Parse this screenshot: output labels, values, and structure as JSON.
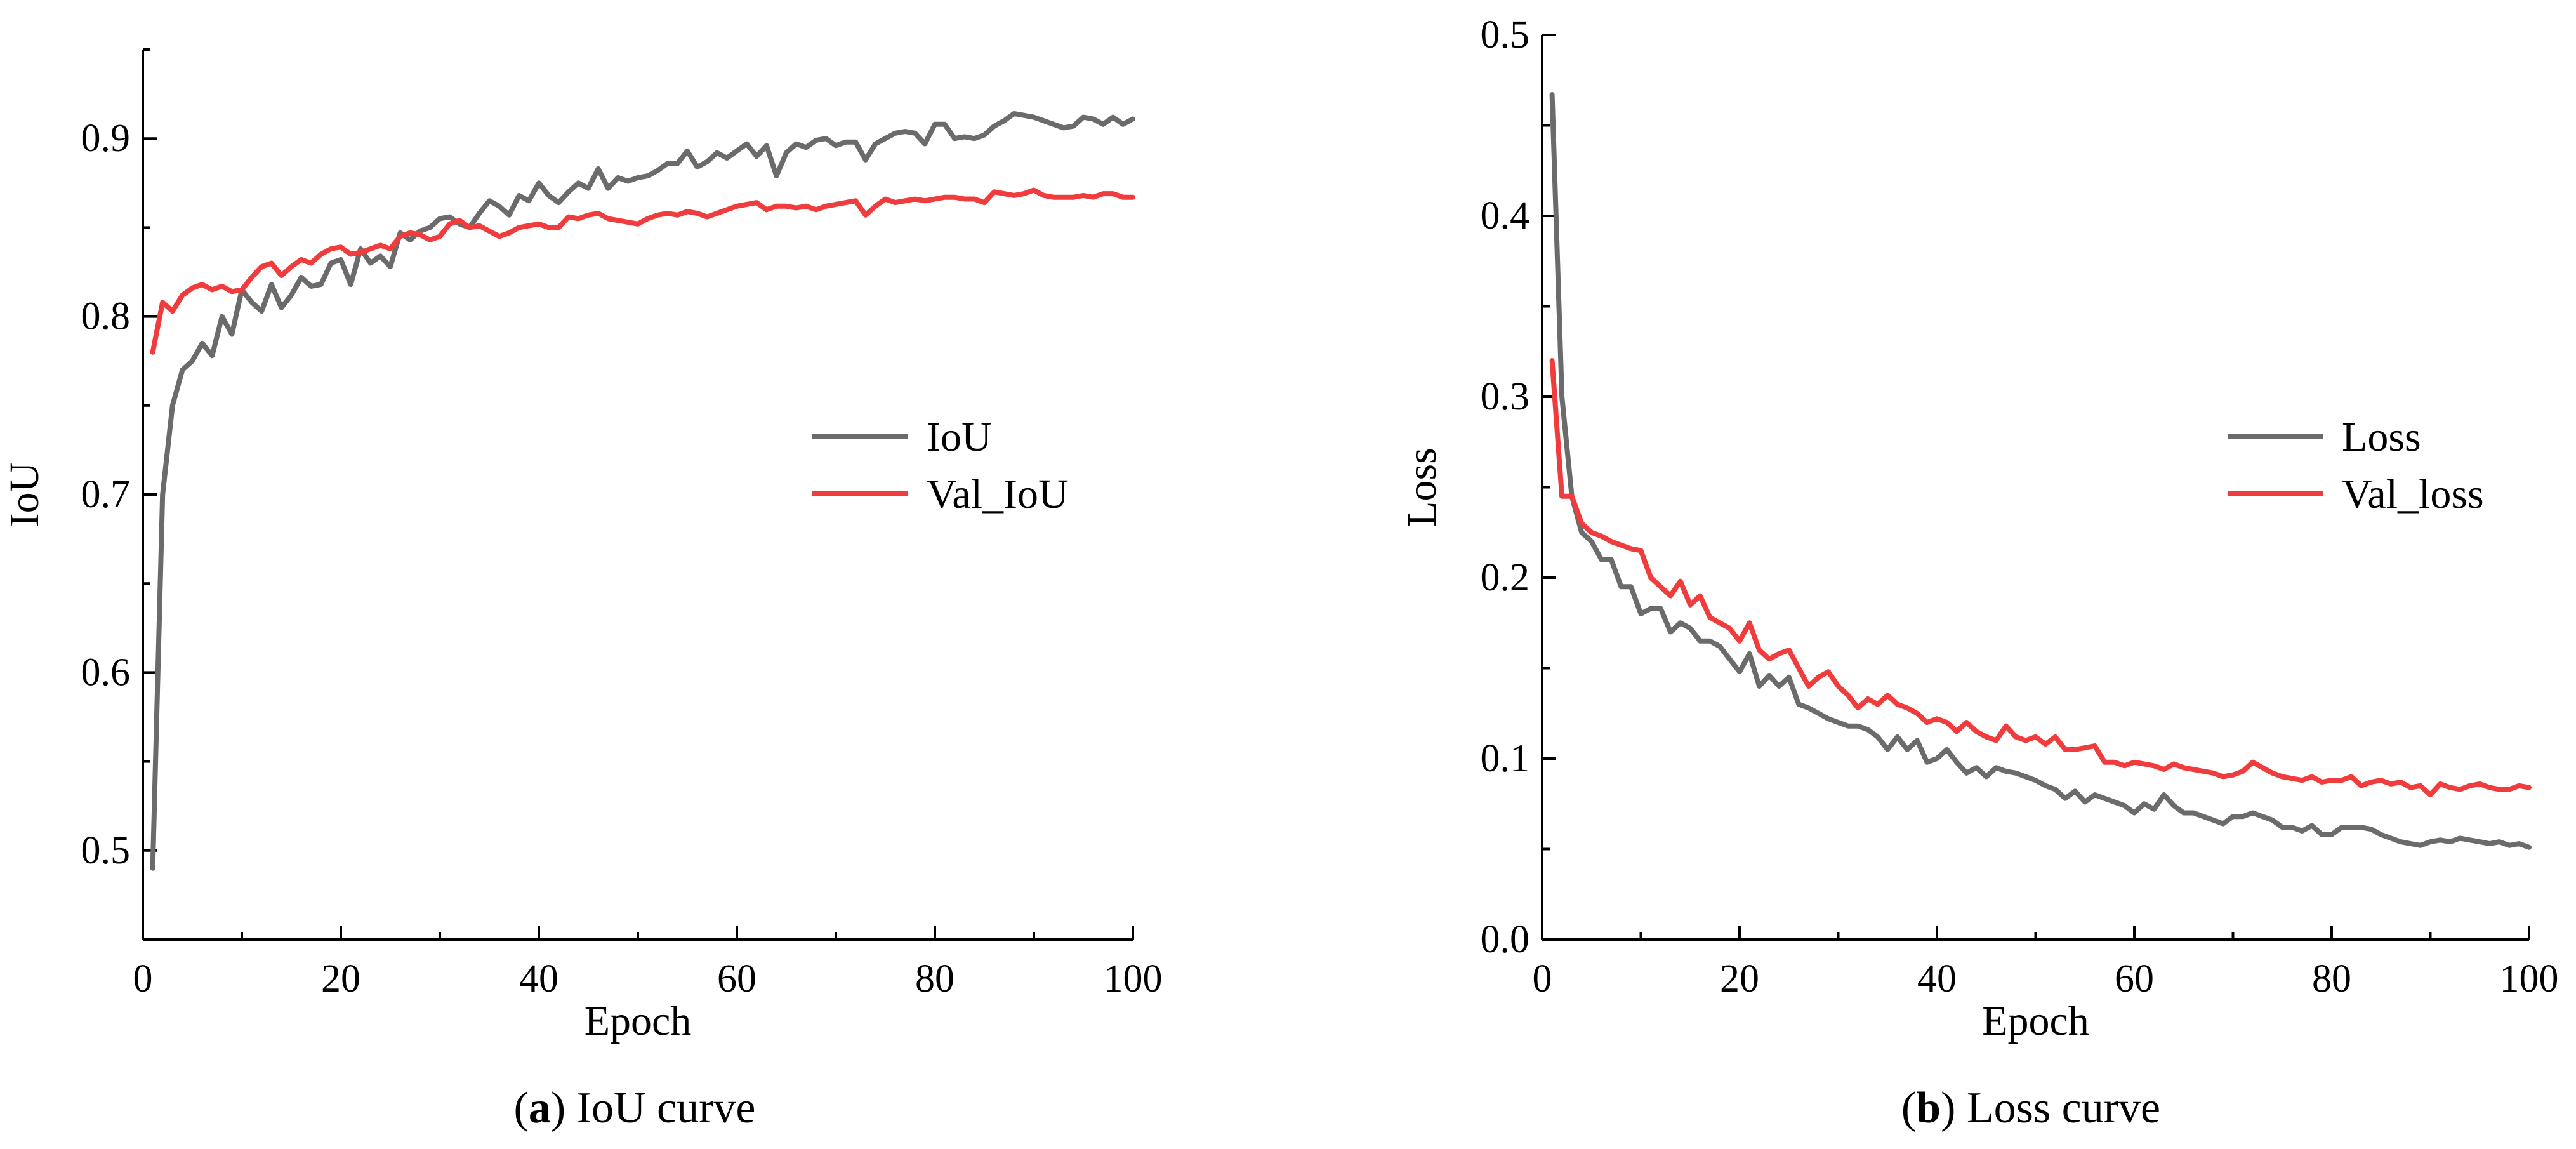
{
  "chart_data": [
    {
      "type": "line",
      "panel_label": "a",
      "caption": "IoU curve",
      "title": "",
      "xlabel": "Epoch",
      "ylabel": "IoU",
      "xlim": [
        0,
        100
      ],
      "ylim": [
        0.45,
        0.95
      ],
      "xticks": [
        0,
        20,
        40,
        60,
        80,
        100
      ],
      "yticks": [
        0.5,
        0.6,
        0.7,
        0.8,
        0.9
      ],
      "ytick_labels": [
        "0.5",
        "0.6",
        "0.7",
        "0.8",
        "0.9"
      ],
      "legend_position": "center-right",
      "series": [
        {
          "name": "IoU",
          "color": "#6b6b6b",
          "x": [
            1,
            2,
            3,
            4,
            5,
            6,
            7,
            8,
            9,
            10,
            11,
            12,
            13,
            14,
            15,
            16,
            17,
            18,
            19,
            20,
            21,
            22,
            23,
            24,
            25,
            26,
            27,
            28,
            29,
            30,
            31,
            32,
            33,
            34,
            35,
            36,
            37,
            38,
            39,
            40,
            41,
            42,
            43,
            44,
            45,
            46,
            47,
            48,
            49,
            50,
            51,
            52,
            53,
            54,
            55,
            56,
            57,
            58,
            59,
            60,
            61,
            62,
            63,
            64,
            65,
            66,
            67,
            68,
            69,
            70,
            71,
            72,
            73,
            74,
            75,
            76,
            77,
            78,
            79,
            80,
            81,
            82,
            83,
            84,
            85,
            86,
            87,
            88,
            89,
            90,
            91,
            92,
            93,
            94,
            95,
            96,
            97,
            98,
            99,
            100
          ],
          "values": [
            0.49,
            0.7,
            0.75,
            0.77,
            0.775,
            0.785,
            0.778,
            0.8,
            0.79,
            0.815,
            0.808,
            0.803,
            0.818,
            0.805,
            0.812,
            0.822,
            0.817,
            0.818,
            0.83,
            0.832,
            0.818,
            0.838,
            0.83,
            0.834,
            0.828,
            0.847,
            0.843,
            0.848,
            0.85,
            0.855,
            0.856,
            0.852,
            0.85,
            0.858,
            0.865,
            0.862,
            0.857,
            0.868,
            0.865,
            0.875,
            0.868,
            0.864,
            0.87,
            0.875,
            0.872,
            0.883,
            0.872,
            0.878,
            0.876,
            0.878,
            0.879,
            0.882,
            0.886,
            0.886,
            0.893,
            0.884,
            0.887,
            0.892,
            0.889,
            0.893,
            0.897,
            0.89,
            0.896,
            0.879,
            0.892,
            0.897,
            0.895,
            0.899,
            0.9,
            0.896,
            0.898,
            0.898,
            0.888,
            0.897,
            0.9,
            0.903,
            0.904,
            0.903,
            0.897,
            0.908,
            0.908,
            0.9,
            0.901,
            0.9,
            0.902,
            0.907,
            0.91,
            0.914,
            0.913,
            0.912,
            0.91,
            0.908,
            0.906,
            0.907,
            0.912,
            0.911,
            0.908,
            0.912,
            0.908,
            0.911
          ]
        },
        {
          "name": "Val_IoU",
          "color": "#f03c3c",
          "x": [
            1,
            2,
            3,
            4,
            5,
            6,
            7,
            8,
            9,
            10,
            11,
            12,
            13,
            14,
            15,
            16,
            17,
            18,
            19,
            20,
            21,
            22,
            23,
            24,
            25,
            26,
            27,
            28,
            29,
            30,
            31,
            32,
            33,
            34,
            35,
            36,
            37,
            38,
            39,
            40,
            41,
            42,
            43,
            44,
            45,
            46,
            47,
            48,
            49,
            50,
            51,
            52,
            53,
            54,
            55,
            56,
            57,
            58,
            59,
            60,
            61,
            62,
            63,
            64,
            65,
            66,
            67,
            68,
            69,
            70,
            71,
            72,
            73,
            74,
            75,
            76,
            77,
            78,
            79,
            80,
            81,
            82,
            83,
            84,
            85,
            86,
            87,
            88,
            89,
            90,
            91,
            92,
            93,
            94,
            95,
            96,
            97,
            98,
            99,
            100
          ],
          "values": [
            0.78,
            0.808,
            0.803,
            0.812,
            0.816,
            0.818,
            0.815,
            0.817,
            0.814,
            0.815,
            0.822,
            0.828,
            0.83,
            0.823,
            0.828,
            0.832,
            0.83,
            0.835,
            0.838,
            0.839,
            0.835,
            0.836,
            0.838,
            0.84,
            0.838,
            0.845,
            0.847,
            0.846,
            0.843,
            0.845,
            0.852,
            0.854,
            0.85,
            0.851,
            0.848,
            0.845,
            0.847,
            0.85,
            0.851,
            0.852,
            0.85,
            0.85,
            0.856,
            0.855,
            0.857,
            0.858,
            0.855,
            0.854,
            0.853,
            0.852,
            0.855,
            0.857,
            0.858,
            0.857,
            0.859,
            0.858,
            0.856,
            0.858,
            0.86,
            0.862,
            0.863,
            0.864,
            0.86,
            0.862,
            0.862,
            0.861,
            0.862,
            0.86,
            0.862,
            0.863,
            0.864,
            0.865,
            0.857,
            0.862,
            0.866,
            0.864,
            0.865,
            0.866,
            0.865,
            0.866,
            0.867,
            0.867,
            0.866,
            0.866,
            0.864,
            0.87,
            0.869,
            0.868,
            0.869,
            0.871,
            0.868,
            0.867,
            0.867,
            0.867,
            0.868,
            0.867,
            0.869,
            0.869,
            0.867,
            0.867
          ]
        }
      ]
    },
    {
      "type": "line",
      "panel_label": "b",
      "caption": "Loss curve",
      "title": "",
      "xlabel": "Epoch",
      "ylabel": "Loss",
      "xlim": [
        0,
        100
      ],
      "ylim": [
        0,
        0.5
      ],
      "xticks": [
        0,
        20,
        40,
        60,
        80,
        100
      ],
      "yticks": [
        0,
        0.1,
        0.2,
        0.3,
        0.4,
        0.5
      ],
      "ytick_labels": [
        "0.0",
        "0.1",
        "0.2",
        "0.3",
        "0.4",
        "0.5"
      ],
      "legend_position": "center-right",
      "series": [
        {
          "name": "Loss",
          "color": "#6b6b6b",
          "x": [
            1,
            2,
            3,
            4,
            5,
            6,
            7,
            8,
            9,
            10,
            11,
            12,
            13,
            14,
            15,
            16,
            17,
            18,
            19,
            20,
            21,
            22,
            23,
            24,
            25,
            26,
            27,
            28,
            29,
            30,
            31,
            32,
            33,
            34,
            35,
            36,
            37,
            38,
            39,
            40,
            41,
            42,
            43,
            44,
            45,
            46,
            47,
            48,
            49,
            50,
            51,
            52,
            53,
            54,
            55,
            56,
            57,
            58,
            59,
            60,
            61,
            62,
            63,
            64,
            65,
            66,
            67,
            68,
            69,
            70,
            71,
            72,
            73,
            74,
            75,
            76,
            77,
            78,
            79,
            80,
            81,
            82,
            83,
            84,
            85,
            86,
            87,
            88,
            89,
            90,
            91,
            92,
            93,
            94,
            95,
            96,
            97,
            98,
            99,
            100
          ],
          "values": [
            0.467,
            0.3,
            0.245,
            0.225,
            0.22,
            0.21,
            0.21,
            0.195,
            0.195,
            0.18,
            0.183,
            0.183,
            0.17,
            0.175,
            0.172,
            0.165,
            0.165,
            0.162,
            0.155,
            0.148,
            0.158,
            0.14,
            0.146,
            0.14,
            0.145,
            0.13,
            0.128,
            0.125,
            0.122,
            0.12,
            0.118,
            0.118,
            0.116,
            0.112,
            0.105,
            0.112,
            0.105,
            0.11,
            0.098,
            0.1,
            0.105,
            0.098,
            0.092,
            0.095,
            0.09,
            0.095,
            0.093,
            0.092,
            0.09,
            0.088,
            0.085,
            0.083,
            0.078,
            0.082,
            0.076,
            0.08,
            0.078,
            0.076,
            0.074,
            0.07,
            0.075,
            0.072,
            0.08,
            0.074,
            0.07,
            0.07,
            0.068,
            0.066,
            0.064,
            0.068,
            0.068,
            0.07,
            0.068,
            0.066,
            0.062,
            0.062,
            0.06,
            0.063,
            0.058,
            0.058,
            0.062,
            0.062,
            0.062,
            0.061,
            0.058,
            0.056,
            0.054,
            0.053,
            0.052,
            0.054,
            0.055,
            0.054,
            0.056,
            0.055,
            0.054,
            0.053,
            0.054,
            0.052,
            0.053,
            0.051
          ]
        },
        {
          "name": "Val_loss",
          "color": "#f03c3c",
          "x": [
            1,
            2,
            3,
            4,
            5,
            6,
            7,
            8,
            9,
            10,
            11,
            12,
            13,
            14,
            15,
            16,
            17,
            18,
            19,
            20,
            21,
            22,
            23,
            24,
            25,
            26,
            27,
            28,
            29,
            30,
            31,
            32,
            33,
            34,
            35,
            36,
            37,
            38,
            39,
            40,
            41,
            42,
            43,
            44,
            45,
            46,
            47,
            48,
            49,
            50,
            51,
            52,
            53,
            54,
            55,
            56,
            57,
            58,
            59,
            60,
            61,
            62,
            63,
            64,
            65,
            66,
            67,
            68,
            69,
            70,
            71,
            72,
            73,
            74,
            75,
            76,
            77,
            78,
            79,
            80,
            81,
            82,
            83,
            84,
            85,
            86,
            87,
            88,
            89,
            90,
            91,
            92,
            93,
            94,
            95,
            96,
            97,
            98,
            99,
            100
          ],
          "values": [
            0.32,
            0.245,
            0.245,
            0.23,
            0.225,
            0.223,
            0.22,
            0.218,
            0.216,
            0.215,
            0.2,
            0.195,
            0.19,
            0.198,
            0.185,
            0.19,
            0.178,
            0.175,
            0.172,
            0.165,
            0.175,
            0.16,
            0.155,
            0.158,
            0.16,
            0.15,
            0.14,
            0.145,
            0.148,
            0.14,
            0.135,
            0.128,
            0.133,
            0.13,
            0.135,
            0.13,
            0.128,
            0.125,
            0.12,
            0.122,
            0.12,
            0.115,
            0.12,
            0.115,
            0.112,
            0.11,
            0.118,
            0.112,
            0.11,
            0.112,
            0.108,
            0.112,
            0.105,
            0.105,
            0.106,
            0.107,
            0.098,
            0.098,
            0.096,
            0.098,
            0.097,
            0.096,
            0.094,
            0.097,
            0.095,
            0.094,
            0.093,
            0.092,
            0.09,
            0.091,
            0.093,
            0.098,
            0.095,
            0.092,
            0.09,
            0.089,
            0.088,
            0.09,
            0.087,
            0.088,
            0.088,
            0.09,
            0.085,
            0.087,
            0.088,
            0.086,
            0.087,
            0.084,
            0.085,
            0.08,
            0.086,
            0.084,
            0.083,
            0.085,
            0.086,
            0.084,
            0.083,
            0.083,
            0.085,
            0.084
          ]
        }
      ]
    }
  ]
}
